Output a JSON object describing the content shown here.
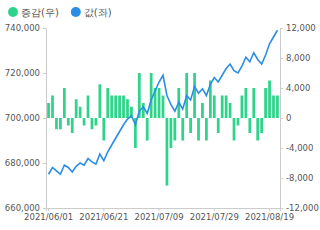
{
  "chart_data": {
    "type": "combo",
    "categories": [
      "2021/06/01",
      null,
      null,
      null,
      null,
      null,
      null,
      null,
      null,
      null,
      null,
      null,
      null,
      null,
      "2021/06/21",
      null,
      null,
      null,
      null,
      null,
      null,
      null,
      null,
      null,
      null,
      null,
      null,
      null,
      "2021/07/09",
      null,
      null,
      null,
      null,
      null,
      null,
      null,
      null,
      null,
      null,
      null,
      null,
      null,
      "2021/07/29",
      null,
      null,
      null,
      null,
      null,
      null,
      null,
      null,
      null,
      null,
      null,
      null,
      null,
      "2021/08/19",
      null,
      null
    ],
    "series": [
      {
        "name": "증감(우)",
        "type": "bar",
        "axis": "y2",
        "color": "#2fd48a",
        "values": [
          2000,
          3000,
          -1500,
          -1500,
          4000,
          -1000,
          -2000,
          2500,
          1500,
          -1000,
          3000,
          -1500,
          -1000,
          4500,
          -3000,
          4000,
          3000,
          3000,
          3000,
          3000,
          2500,
          1500,
          -4000,
          6000,
          2000,
          -3000,
          6000,
          4000,
          4000,
          3000,
          -9000,
          -4000,
          -3000,
          4000,
          -3000,
          6000,
          -2000,
          6000,
          -3000,
          2000,
          -3000,
          5000,
          3000,
          -2000,
          3000,
          3000,
          2000,
          -3000,
          -1000,
          3000,
          4000,
          -2000,
          4000,
          -3000,
          -2000,
          4000,
          5000,
          3000,
          3000
        ]
      },
      {
        "name": "값(좌)",
        "type": "line",
        "axis": "y",
        "color": "#2a8de6",
        "values": [
          675000,
          678000,
          676500,
          675000,
          679000,
          678000,
          676000,
          678500,
          680000,
          679000,
          682000,
          680500,
          679500,
          684000,
          681000,
          685000,
          688000,
          691000,
          694000,
          697000,
          699500,
          701000,
          697000,
          703000,
          705000,
          702000,
          708000,
          712000,
          716000,
          719000,
          710000,
          706000,
          703000,
          707000,
          704000,
          710000,
          708000,
          714000,
          711000,
          713000,
          710000,
          715000,
          718000,
          716000,
          719000,
          722000,
          724000,
          721000,
          720000,
          723000,
          727000,
          725000,
          729000,
          726000,
          724000,
          728000,
          733000,
          736000,
          739000
        ]
      }
    ],
    "ylim": [
      660000,
      740000
    ],
    "yticks": [
      {
        "value": 660000,
        "label": "660,000"
      },
      {
        "value": 680000,
        "label": "680,000"
      },
      {
        "value": 700000,
        "label": "700,000"
      },
      {
        "value": 720000,
        "label": "720,000"
      },
      {
        "value": 740000,
        "label": "740,000"
      }
    ],
    "y2lim": [
      -12000,
      12000
    ],
    "y2ticks": [
      {
        "value": -12000,
        "label": "-12,000"
      },
      {
        "value": -8000,
        "label": "-8,000"
      },
      {
        "value": -4000,
        "label": "-4,000"
      },
      0,
      {
        "value": 4000,
        "label": "4,000"
      },
      {
        "value": 8000,
        "label": "8,000"
      },
      {
        "value": 12000,
        "label": "12,000"
      }
    ],
    "grid": false,
    "legend": "top-left"
  }
}
